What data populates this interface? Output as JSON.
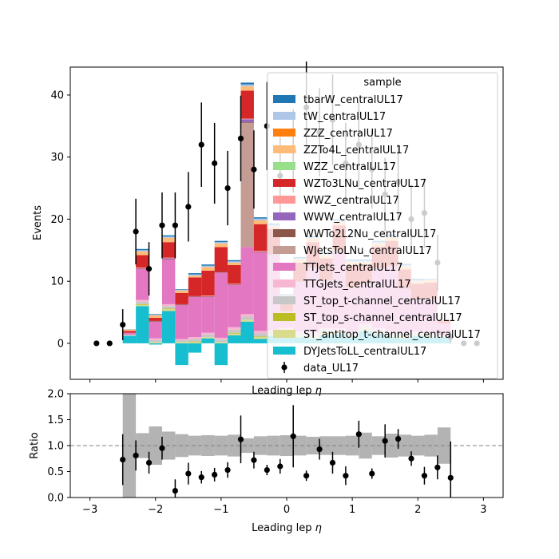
{
  "colors": {
    "tbarW_centralUL17": "#1f77b4",
    "tW_centralUL17": "#aec7e8",
    "ZZZ_centralUL17": "#ff7f0e",
    "ZZTo4L_centralUL17": "#ffbb78",
    "WZZ_centralUL17": "#98df8a",
    "WZTo3LNu_centralUL17": "#d62728",
    "WWZ_centralUL17": "#ff9896",
    "WWW_centralUL17": "#9467bd",
    "WWTo2L2Nu_centralUL17": "#8c564b",
    "WJetsToLNu_centralUL17": "#c49c94",
    "TTJets_centralUL17": "#e377c2",
    "TTGJets_centralUL17": "#f7b6d2",
    "ST_top_t-channel_centralUL17": "#c7c7c7",
    "ST_top_s-channel_centralUL17": "#bcbd22",
    "ST_antitop_t-channel_centralUL17": "#dbdb8d",
    "DYJetsToLL_centralUL17": "#17becf",
    "data": "#000000",
    "uncertainty_band": "#b3b3b3"
  },
  "chart_data": [
    {
      "type": "stacked-step-histogram",
      "xlabel": "Leading lep $\\eta$",
      "ylabel": "Events",
      "xlim": [
        -3.3,
        3.3
      ],
      "ylim": [
        -5.8,
        44.5
      ],
      "yticks": [
        0,
        10,
        20,
        30,
        40
      ],
      "bin_edges": [
        -2.5,
        -2.3,
        -2.1,
        -1.9,
        -1.7,
        -1.5,
        -1.3,
        -1.1,
        -0.9,
        -0.7,
        -0.5,
        -0.3,
        -0.1,
        0.1,
        0.3,
        0.5,
        0.7,
        0.9,
        1.1,
        1.3,
        1.5,
        1.7,
        1.9,
        2.1,
        2.3,
        2.5
      ],
      "legend": {
        "title": "sample",
        "placement": "top-right"
      },
      "stack_order": [
        "DYJetsToLL_centralUL17",
        "ST_antitop_t-channel_centralUL17",
        "ST_top_s-channel_centralUL17",
        "ST_top_t-channel_centralUL17",
        "TTGJets_centralUL17",
        "TTJets_centralUL17",
        "WJetsToLNu_centralUL17",
        "WWTo2L2Nu_centralUL17",
        "WWW_centralUL17",
        "WWZ_centralUL17",
        "WZTo3LNu_centralUL17",
        "WZZ_centralUL17",
        "ZZTo4L_centralUL17",
        "ZZZ_centralUL17",
        "tW_centralUL17",
        "tbarW_centralUL17"
      ],
      "legend_order": [
        "tbarW_centralUL17",
        "tW_centralUL17",
        "ZZZ_centralUL17",
        "ZZTo4L_centralUL17",
        "WZZ_centralUL17",
        "WZTo3LNu_centralUL17",
        "WWZ_centralUL17",
        "WWW_centralUL17",
        "WWTo2L2Nu_centralUL17",
        "WJetsToLNu_centralUL17",
        "TTJets_centralUL17",
        "TTGJets_centralUL17",
        "ST_top_t-channel_centralUL17",
        "ST_top_s-channel_centralUL17",
        "ST_antitop_t-channel_centralUL17",
        "DYJetsToLL_centralUL17"
      ],
      "series": [
        {
          "name": "DYJetsToLL_centralUL17",
          "values": [
            1.2,
            6.0,
            -0.2,
            5.2,
            -3.5,
            -1.5,
            0.8,
            -3.5,
            1.3,
            3.5,
            0.7,
            1.2,
            1.5,
            1.0,
            0.8,
            1.3,
            1.5,
            1.0,
            2.0,
            1.5,
            1.0,
            0.8,
            1.2,
            1.0,
            1.0
          ]
        },
        {
          "name": "ST_antitop_t-channel_centralUL17",
          "values": [
            0,
            0.2,
            0.2,
            0.3,
            0.2,
            0.2,
            0.2,
            0.2,
            0.3,
            0.3,
            0.3,
            0.2,
            0.2,
            0.2,
            0.2,
            0.3,
            0.2,
            0.2,
            0.2,
            0.2,
            0.2,
            0.2,
            0.2,
            0.2,
            0
          ]
        },
        {
          "name": "ST_top_s-channel_centralUL17",
          "values": [
            0,
            0.1,
            0,
            0.1,
            0,
            0.1,
            0,
            0,
            0.1,
            0,
            0.1,
            0,
            0.1,
            0,
            0,
            0.1,
            0,
            0,
            0.1,
            0,
            0,
            0.1,
            0,
            0,
            0
          ]
        },
        {
          "name": "ST_top_t-channel_centralUL17",
          "values": [
            0.2,
            0.4,
            0.3,
            0.4,
            0.3,
            0.4,
            0.4,
            0.4,
            0.5,
            0.5,
            0.5,
            0.4,
            0.4,
            0.4,
            0.4,
            0.5,
            0.4,
            0.4,
            0.5,
            0.4,
            0.4,
            0.4,
            0.3,
            0.3,
            0.2
          ]
        },
        {
          "name": "TTGJets_centralUL17",
          "values": [
            0,
            0.3,
            0.3,
            0.3,
            0.2,
            0.3,
            0.3,
            0.3,
            0.4,
            0.4,
            0.4,
            0.3,
            0.3,
            0.3,
            0.3,
            0.3,
            0.3,
            0.3,
            0.3,
            0.3,
            0.3,
            0.3,
            0.2,
            0.2,
            0
          ]
        },
        {
          "name": "TTJets_centralUL17",
          "values": [
            0.3,
            5.0,
            2.7,
            7.2,
            5.5,
            6.5,
            5.8,
            10.5,
            6.8,
            10.8,
            12.7,
            12.1,
            2.5,
            8.0,
            10.5,
            7.5,
            12.5,
            7.0,
            6.5,
            9.5,
            10.5,
            7.0,
            5.0,
            5.5,
            2.0
          ]
        },
        {
          "name": "WJetsToLNu_centralUL17",
          "values": [
            0,
            0,
            0,
            0,
            0,
            0,
            0,
            0,
            0,
            20.0,
            0,
            0,
            0,
            0,
            0,
            0,
            0,
            0,
            0,
            0,
            0,
            0,
            0,
            0,
            0
          ]
        },
        {
          "name": "WWTo2L2Nu_centralUL17",
          "values": [
            0,
            0.1,
            0.1,
            0.1,
            0.1,
            0.1,
            0.1,
            0.1,
            0.1,
            0.1,
            0.1,
            0.1,
            0.1,
            0.1,
            0.1,
            0.1,
            0.1,
            0.1,
            0.1,
            0.1,
            0.1,
            0.1,
            0.1,
            0.1,
            0
          ]
        },
        {
          "name": "WWW_centralUL17",
          "values": [
            0,
            0,
            0,
            0.1,
            0,
            0,
            0,
            0,
            0,
            0.5,
            0,
            0.1,
            0,
            0,
            0,
            0,
            0,
            0,
            0,
            0,
            0,
            0,
            0,
            0,
            0
          ]
        },
        {
          "name": "WWZ_centralUL17",
          "values": [
            0,
            0.1,
            0,
            0.1,
            0,
            0,
            0.1,
            0,
            0.1,
            0.1,
            0.1,
            0,
            0.1,
            0,
            0,
            0.1,
            0,
            0.1,
            0,
            0.1,
            0,
            0,
            0.1,
            0,
            0
          ]
        },
        {
          "name": "WZTo3LNu_centralUL17",
          "values": [
            0.3,
            2.0,
            0.5,
            2.5,
            1.8,
            3.0,
            4.0,
            4.0,
            3.0,
            4.5,
            4.3,
            4.0,
            2.0,
            3.0,
            4.0,
            3.5,
            4.0,
            3.5,
            3.0,
            3.5,
            4.0,
            3.0,
            2.5,
            2.5,
            0.5
          ]
        },
        {
          "name": "WZZ_centralUL17",
          "values": [
            0,
            0,
            0,
            0,
            0,
            0,
            0,
            0,
            0,
            0,
            0,
            0,
            0,
            0,
            0,
            0,
            0,
            0,
            0,
            0,
            0,
            0,
            0,
            0,
            0
          ]
        },
        {
          "name": "ZZTo4L_centralUL17",
          "values": [
            0.2,
            0.6,
            0.4,
            0.7,
            0.4,
            0.3,
            0.6,
            0.6,
            0.4,
            0.7,
            0.6,
            0.5,
            0.4,
            0.5,
            0.6,
            0.5,
            0.6,
            0.5,
            0.4,
            0.5,
            0.6,
            0.5,
            0.4,
            0.4,
            0.2
          ]
        },
        {
          "name": "ZZZ_centralUL17",
          "values": [
            0,
            0,
            0,
            0,
            0,
            0,
            0,
            0,
            0,
            0,
            0,
            0,
            0,
            0,
            0,
            0,
            0,
            0,
            0,
            0,
            0,
            0,
            0,
            0,
            0
          ]
        },
        {
          "name": "tW_centralUL17",
          "values": [
            0.1,
            0.2,
            0.1,
            0.2,
            0.1,
            0.2,
            0.2,
            0.2,
            0.2,
            0.3,
            0.3,
            0.2,
            0.2,
            0.2,
            0.2,
            0.2,
            0.2,
            0.2,
            0.2,
            0.2,
            0.2,
            0.2,
            0.2,
            0.1,
            0.1
          ]
        },
        {
          "name": "tbarW_centralUL17",
          "values": [
            0,
            0.2,
            0.1,
            0.2,
            0.1,
            0.2,
            0.2,
            0.2,
            0.2,
            0.3,
            0.2,
            0.2,
            0.1,
            0.2,
            0.2,
            0.2,
            0.2,
            0.2,
            0.2,
            0.2,
            0.2,
            0.2,
            0.2,
            0.1,
            0
          ]
        }
      ],
      "data": {
        "name": "data_UL17",
        "x": [
          -2.9,
          -2.7,
          -2.5,
          -2.3,
          -2.1,
          -1.9,
          -1.7,
          -1.5,
          -1.3,
          -1.1,
          -0.9,
          -0.7,
          -0.5,
          -0.3,
          -0.1,
          0.1,
          0.3,
          0.5,
          0.7,
          0.9,
          1.1,
          1.3,
          1.5,
          1.7,
          1.9,
          2.1,
          2.3,
          2.5,
          2.7,
          2.9
        ],
        "y": [
          0,
          0,
          3,
          18,
          12,
          19,
          19,
          22,
          32,
          29,
          25,
          33,
          28,
          35,
          27,
          31,
          38,
          34,
          36,
          29,
          32,
          28,
          24,
          26,
          20,
          21,
          13,
          1,
          0,
          0
        ],
        "yerr": [
          0,
          0,
          2.5,
          5.3,
          4.3,
          5.3,
          5.3,
          5.6,
          6.8,
          6.5,
          6.0,
          6.9,
          6.3,
          7.1,
          6.2,
          6.7,
          7.4,
          7.1,
          7.3,
          6.5,
          6.8,
          6.3,
          5.9,
          6.1,
          5.5,
          5.6,
          4.5,
          1.0,
          0,
          0
        ]
      }
    },
    {
      "type": "ratio",
      "xlabel": "Leading lep $\\eta$",
      "ylabel": "Ratio",
      "xlim": [
        -3.3,
        3.3
      ],
      "ylim": [
        0,
        2.0
      ],
      "xticks": [
        -3,
        -2,
        -1,
        0,
        1,
        2,
        3
      ],
      "yticks": [
        0.0,
        0.5,
        1.0,
        1.5,
        2.0
      ],
      "reference_line": 1.0,
      "band": {
        "bin_edges": [
          -2.5,
          -2.3,
          -2.1,
          -1.9,
          -1.7,
          -1.5,
          -1.3,
          -1.1,
          -0.9,
          -0.7,
          -0.5,
          -0.3,
          -0.1,
          0.1,
          0.3,
          0.5,
          0.7,
          0.9,
          1.1,
          1.3,
          1.5,
          1.7,
          1.9,
          2.1,
          2.3,
          2.5
        ],
        "low": [
          0.0,
          0.76,
          0.63,
          0.73,
          0.78,
          0.81,
          0.8,
          0.81,
          0.79,
          0.86,
          0.82,
          0.81,
          0.8,
          0.81,
          0.83,
          0.82,
          0.82,
          0.81,
          0.75,
          0.82,
          0.77,
          0.79,
          0.81,
          0.79,
          0.65
        ],
        "high": [
          2.0,
          1.24,
          1.37,
          1.27,
          1.22,
          1.19,
          1.2,
          1.19,
          1.21,
          1.14,
          1.18,
          1.19,
          1.2,
          1.19,
          1.17,
          1.18,
          1.18,
          1.19,
          1.25,
          1.18,
          1.23,
          1.21,
          1.19,
          1.21,
          1.35
        ]
      },
      "points": {
        "x": [
          -2.5,
          -2.3,
          -2.1,
          -1.9,
          -1.7,
          -1.5,
          -1.3,
          -1.1,
          -0.9,
          -0.7,
          -0.5,
          -0.3,
          -0.1,
          0.1,
          0.3,
          0.5,
          0.7,
          0.9,
          1.1,
          1.3,
          1.5,
          1.7,
          1.9,
          2.1,
          2.3,
          2.5
        ],
        "y": [
          0.73,
          0.81,
          0.67,
          0.95,
          0.13,
          0.46,
          0.39,
          0.44,
          0.53,
          1.12,
          0.72,
          0.53,
          0.6,
          1.18,
          0.42,
          0.93,
          0.67,
          0.42,
          1.22,
          0.46,
          1.09,
          1.13,
          0.75,
          0.42,
          0.58,
          0.38
        ],
        "yerr": [
          0.49,
          0.29,
          0.21,
          0.22,
          0.22,
          0.21,
          0.12,
          0.13,
          0.15,
          0.46,
          0.16,
          0.1,
          0.14,
          0.6,
          0.1,
          0.2,
          0.21,
          0.18,
          0.26,
          0.1,
          0.32,
          0.19,
          0.14,
          0.17,
          0.23,
          0.7
        ]
      }
    }
  ]
}
